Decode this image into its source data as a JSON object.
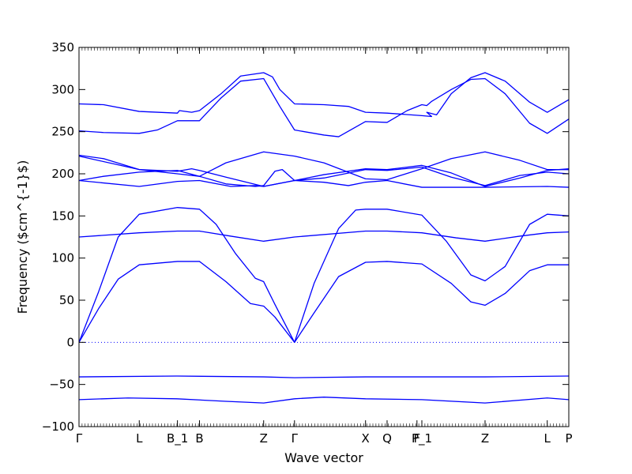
{
  "chart_data": {
    "type": "line",
    "xlabel": "Wave vector",
    "ylabel": "Frequency ($cm^{-1}$)",
    "ylim": [
      -100,
      350
    ],
    "xlim": [
      0,
      1
    ],
    "yticks": [
      -100,
      -50,
      0,
      50,
      100,
      150,
      200,
      250,
      300,
      350
    ],
    "high_symmetry_points": [
      {
        "label": "Γ",
        "x": 0.0
      },
      {
        "label": "L",
        "x": 0.123
      },
      {
        "label": "B_1",
        "x": 0.201
      },
      {
        "label": "B",
        "x": 0.246
      },
      {
        "label": "Z",
        "x": 0.377
      },
      {
        "label": "Γ",
        "x": 0.44
      },
      {
        "label": "X",
        "x": 0.585
      },
      {
        "label": "Q",
        "x": 0.629
      },
      {
        "label": "F",
        "x": 0.69
      },
      {
        "label": "P_1",
        "x": 0.7
      },
      {
        "label": "Z",
        "x": 0.829
      },
      {
        "label": "L",
        "x": 0.956
      },
      {
        "label": "P",
        "x": 1.0
      }
    ],
    "zero_line": true,
    "line_color": "#0000ff",
    "zero_line_color": "#0000ff",
    "series": [
      {
        "values": [
          [
            0.0,
            -68
          ],
          [
            0.1,
            -66
          ],
          [
            0.2,
            -67
          ],
          [
            0.3,
            -70
          ],
          [
            0.377,
            -72
          ],
          [
            0.44,
            -67
          ],
          [
            0.5,
            -65
          ],
          [
            0.585,
            -67
          ],
          [
            0.7,
            -68
          ],
          [
            0.829,
            -72
          ],
          [
            0.956,
            -66
          ],
          [
            1.0,
            -68
          ]
        ]
      },
      {
        "values": [
          [
            0.0,
            -41
          ],
          [
            0.2,
            -40
          ],
          [
            0.377,
            -41
          ],
          [
            0.44,
            -42
          ],
          [
            0.585,
            -41
          ],
          [
            0.829,
            -41
          ],
          [
            1.0,
            -40
          ]
        ]
      },
      {
        "values": [
          [
            0.0,
            0
          ],
          [
            0.04,
            40
          ],
          [
            0.08,
            75
          ],
          [
            0.123,
            92
          ],
          [
            0.201,
            96
          ],
          [
            0.246,
            96
          ],
          [
            0.3,
            72
          ],
          [
            0.35,
            46
          ],
          [
            0.377,
            43
          ],
          [
            0.4,
            30
          ],
          [
            0.44,
            0
          ],
          [
            0.48,
            35
          ],
          [
            0.53,
            78
          ],
          [
            0.585,
            95
          ],
          [
            0.629,
            96
          ],
          [
            0.7,
            93
          ],
          [
            0.76,
            70
          ],
          [
            0.8,
            48
          ],
          [
            0.829,
            44
          ],
          [
            0.87,
            58
          ],
          [
            0.92,
            85
          ],
          [
            0.956,
            92
          ],
          [
            1.0,
            92
          ]
        ]
      },
      {
        "values": [
          [
            0.0,
            0
          ],
          [
            0.04,
            60
          ],
          [
            0.08,
            125
          ],
          [
            0.123,
            152
          ],
          [
            0.201,
            160
          ],
          [
            0.246,
            158
          ],
          [
            0.28,
            140
          ],
          [
            0.32,
            105
          ],
          [
            0.36,
            76
          ],
          [
            0.377,
            72
          ],
          [
            0.4,
            45
          ],
          [
            0.44,
            0
          ],
          [
            0.48,
            70
          ],
          [
            0.53,
            135
          ],
          [
            0.565,
            157
          ],
          [
            0.585,
            158
          ],
          [
            0.629,
            158
          ],
          [
            0.7,
            151
          ],
          [
            0.75,
            120
          ],
          [
            0.8,
            80
          ],
          [
            0.829,
            73
          ],
          [
            0.87,
            90
          ],
          [
            0.92,
            140
          ],
          [
            0.956,
            152
          ],
          [
            1.0,
            150
          ]
        ]
      },
      {
        "values": [
          [
            0.0,
            125
          ],
          [
            0.123,
            130
          ],
          [
            0.201,
            132
          ],
          [
            0.246,
            132
          ],
          [
            0.31,
            126
          ],
          [
            0.377,
            120
          ],
          [
            0.44,
            125
          ],
          [
            0.585,
            132
          ],
          [
            0.629,
            132
          ],
          [
            0.7,
            130
          ],
          [
            0.77,
            124
          ],
          [
            0.829,
            120
          ],
          [
            0.9,
            126
          ],
          [
            0.956,
            130
          ],
          [
            1.0,
            131
          ]
        ]
      },
      {
        "values": [
          [
            0.0,
            192
          ],
          [
            0.123,
            185
          ],
          [
            0.201,
            191
          ],
          [
            0.246,
            192
          ],
          [
            0.31,
            185
          ],
          [
            0.36,
            186
          ],
          [
            0.377,
            185
          ],
          [
            0.44,
            192
          ],
          [
            0.5,
            190
          ],
          [
            0.55,
            186
          ],
          [
            0.585,
            190
          ],
          [
            0.629,
            192
          ],
          [
            0.7,
            184
          ],
          [
            0.829,
            184
          ],
          [
            0.956,
            185
          ],
          [
            1.0,
            184
          ]
        ]
      },
      {
        "values": [
          [
            0.0,
            192
          ],
          [
            0.05,
            197
          ],
          [
            0.123,
            202
          ],
          [
            0.201,
            204
          ],
          [
            0.246,
            197
          ],
          [
            0.3,
            188
          ],
          [
            0.36,
            185
          ],
          [
            0.377,
            186
          ],
          [
            0.4,
            203
          ],
          [
            0.415,
            205
          ],
          [
            0.44,
            192
          ],
          [
            0.5,
            195
          ],
          [
            0.585,
            205
          ],
          [
            0.629,
            204
          ],
          [
            0.7,
            208
          ],
          [
            0.76,
            196
          ],
          [
            0.829,
            186
          ],
          [
            0.9,
            198
          ],
          [
            0.956,
            202
          ],
          [
            1.0,
            200
          ]
        ]
      },
      {
        "values": [
          [
            0.0,
            221
          ],
          [
            0.123,
            205
          ],
          [
            0.201,
            200
          ],
          [
            0.246,
            197
          ],
          [
            0.3,
            213
          ],
          [
            0.377,
            226
          ],
          [
            0.44,
            221
          ],
          [
            0.5,
            213
          ],
          [
            0.585,
            194
          ],
          [
            0.629,
            193
          ],
          [
            0.7,
            206
          ],
          [
            0.76,
            218
          ],
          [
            0.829,
            226
          ],
          [
            0.9,
            216
          ],
          [
            0.956,
            205
          ],
          [
            1.0,
            205
          ]
        ]
      },
      {
        "values": [
          [
            0.0,
            222
          ],
          [
            0.05,
            218
          ],
          [
            0.123,
            205
          ],
          [
            0.201,
            203
          ],
          [
            0.23,
            206
          ],
          [
            0.246,
            204
          ],
          [
            0.3,
            196
          ],
          [
            0.377,
            185
          ],
          [
            0.44,
            192
          ],
          [
            0.5,
            199
          ],
          [
            0.585,
            206
          ],
          [
            0.629,
            205
          ],
          [
            0.7,
            210
          ],
          [
            0.76,
            201
          ],
          [
            0.829,
            185
          ],
          [
            0.9,
            195
          ],
          [
            0.956,
            204
          ],
          [
            1.0,
            206
          ]
        ]
      },
      {
        "values": [
          [
            0.0,
            251
          ],
          [
            0.05,
            249
          ],
          [
            0.123,
            248
          ],
          [
            0.16,
            252
          ],
          [
            0.201,
            263
          ],
          [
            0.246,
            263
          ],
          [
            0.29,
            290
          ],
          [
            0.33,
            310
          ],
          [
            0.377,
            313
          ],
          [
            0.41,
            280
          ],
          [
            0.44,
            252
          ],
          [
            0.5,
            246
          ],
          [
            0.53,
            244
          ],
          [
            0.585,
            262
          ],
          [
            0.629,
            261
          ],
          [
            0.67,
            275
          ],
          [
            0.7,
            282
          ],
          [
            0.71,
            281
          ],
          [
            0.72,
            286
          ],
          [
            0.76,
            300
          ],
          [
            0.8,
            312
          ],
          [
            0.829,
            313
          ],
          [
            0.87,
            295
          ],
          [
            0.92,
            260
          ],
          [
            0.956,
            248
          ],
          [
            1.0,
            265
          ]
        ]
      },
      {
        "values": [
          [
            0.0,
            283
          ],
          [
            0.05,
            282
          ],
          [
            0.123,
            274
          ],
          [
            0.201,
            272
          ],
          [
            0.205,
            275
          ],
          [
            0.23,
            273
          ],
          [
            0.246,
            275
          ],
          [
            0.29,
            295
          ],
          [
            0.33,
            316
          ],
          [
            0.377,
            320
          ],
          [
            0.395,
            315
          ],
          [
            0.41,
            300
          ],
          [
            0.44,
            283
          ],
          [
            0.5,
            282
          ],
          [
            0.55,
            280
          ],
          [
            0.585,
            273
          ],
          [
            0.629,
            272
          ],
          [
            0.7,
            269
          ],
          [
            0.72,
            268
          ],
          [
            0.71,
            273
          ],
          [
            0.73,
            270
          ],
          [
            0.76,
            295
          ],
          [
            0.8,
            314
          ],
          [
            0.829,
            320
          ],
          [
            0.87,
            310
          ],
          [
            0.92,
            285
          ],
          [
            0.956,
            273
          ],
          [
            1.0,
            288
          ]
        ]
      }
    ]
  }
}
